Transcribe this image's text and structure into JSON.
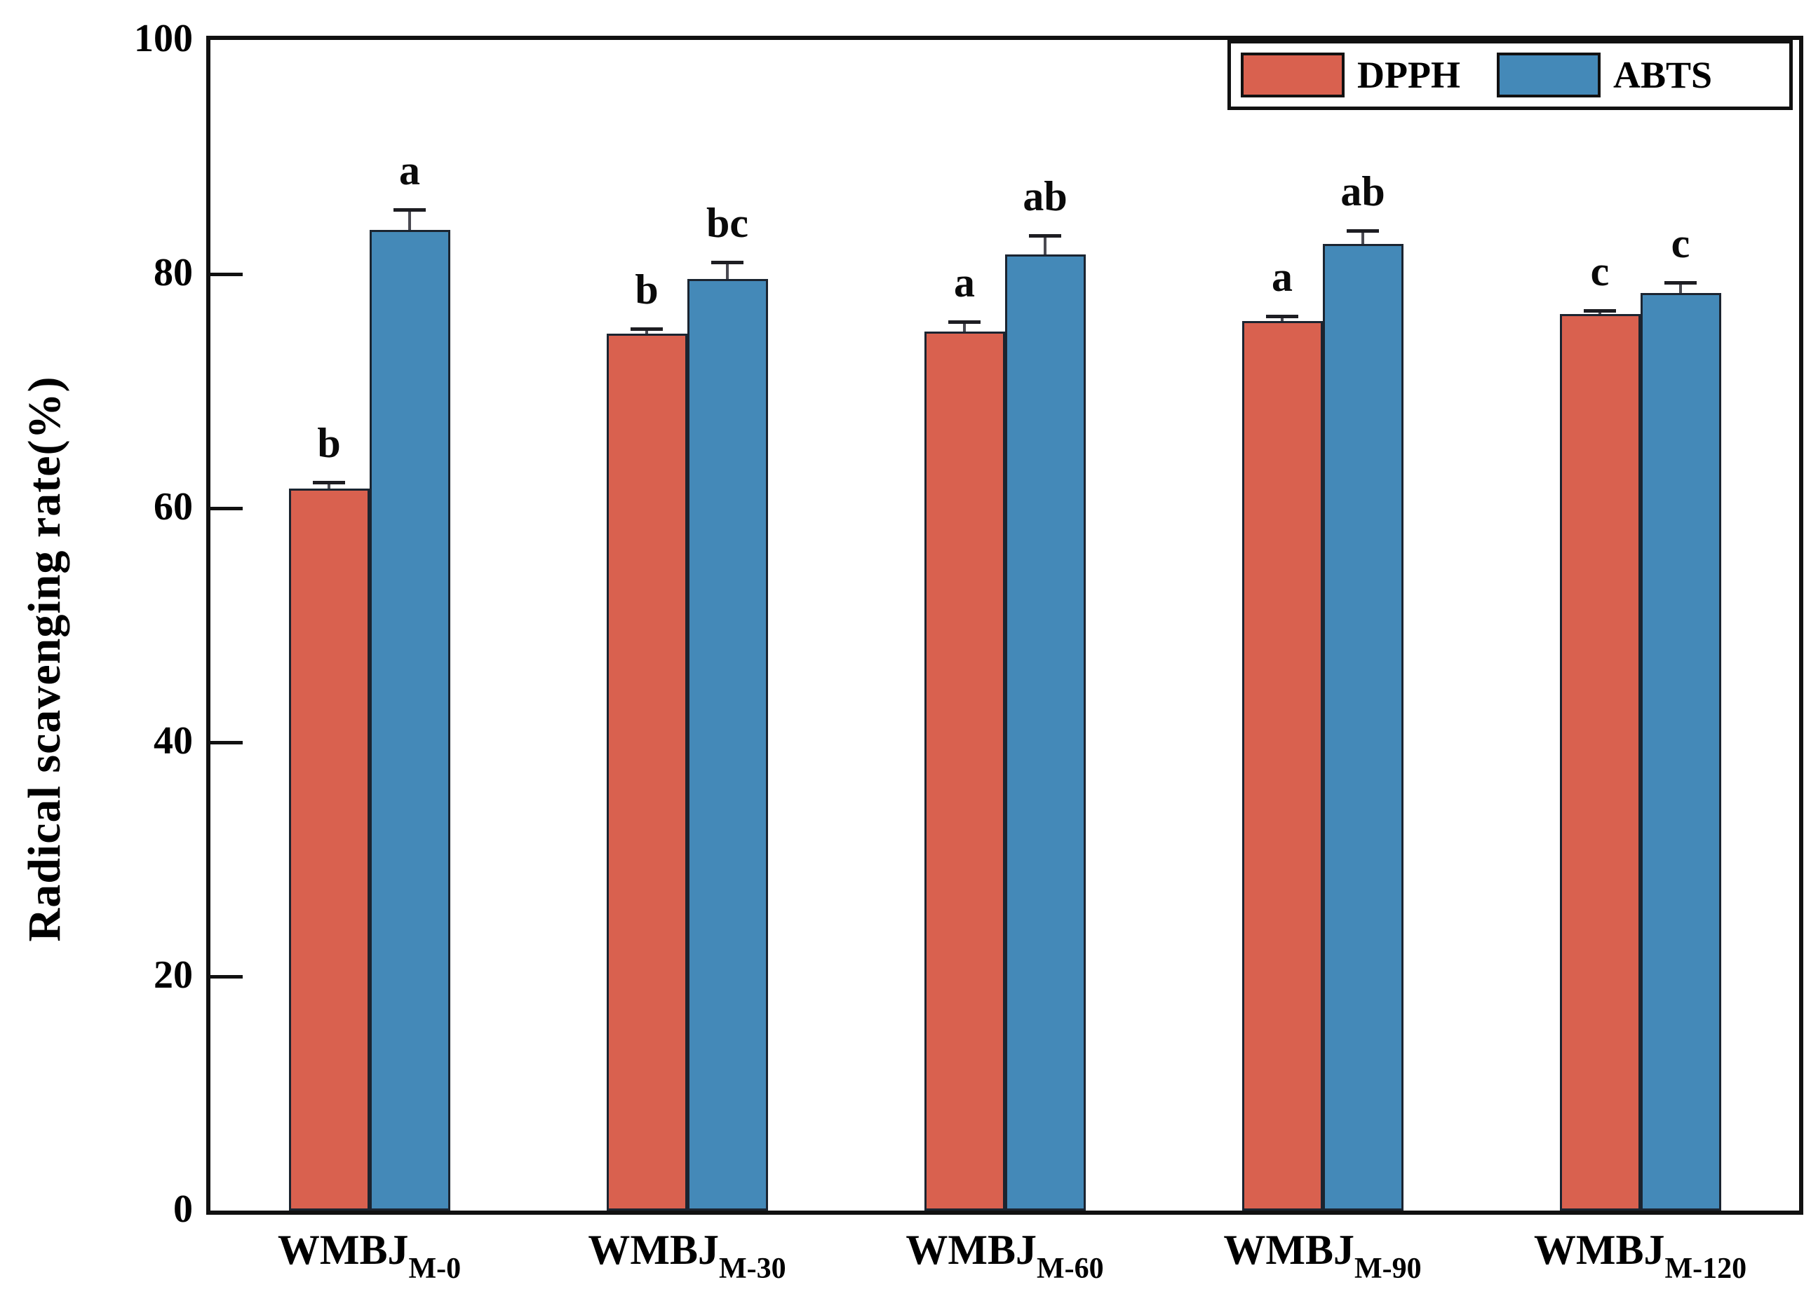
{
  "chart_data": {
    "type": "bar",
    "title": "",
    "ylabel": "Radical scavenging rate(%)",
    "xlabel": "",
    "ylim": [
      0,
      100
    ],
    "yticks": [
      0,
      20,
      40,
      60,
      80,
      100
    ],
    "grid": false,
    "categories": [
      {
        "base": "WMBJ",
        "sub": "M-0"
      },
      {
        "base": "WMBJ",
        "sub": "M-30"
      },
      {
        "base": "WMBJ",
        "sub": "M-60"
      },
      {
        "base": "WMBJ",
        "sub": "M-90"
      },
      {
        "base": "WMBJ",
        "sub": "M-120"
      }
    ],
    "series": [
      {
        "name": "DPPH",
        "color": "#D9614F",
        "edge_color": "#1B2430",
        "values": [
          61.7,
          74.9,
          75.1,
          76.0,
          76.6
        ],
        "errors": [
          0.5,
          0.4,
          0.8,
          0.4,
          0.3
        ],
        "letters": [
          "b",
          "b",
          "a",
          "a",
          "c"
        ]
      },
      {
        "name": "ABTS",
        "color": "#4489B8",
        "edge_color": "#1B2430",
        "values": [
          83.8,
          79.6,
          81.7,
          82.6,
          78.4
        ],
        "errors": [
          1.7,
          1.4,
          1.6,
          1.1,
          0.9
        ],
        "letters": [
          "a",
          "bc",
          "ab",
          "ab",
          "c"
        ]
      }
    ],
    "legend": {
      "position": "top-right",
      "entries": [
        "DPPH",
        "ABTS"
      ]
    }
  }
}
